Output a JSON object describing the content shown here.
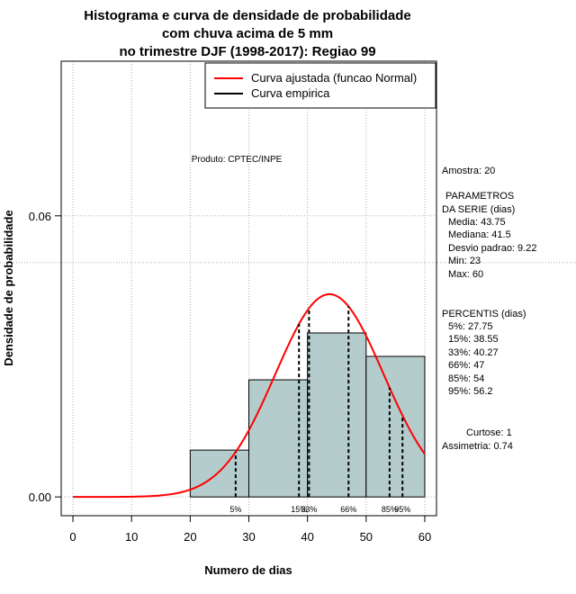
{
  "chart_data": {
    "type": "histogram",
    "title_lines": [
      "Histograma e curva de densidade de probabilidade",
      "com chuva acima de 5 mm",
      "no trimestre DJF (1998-2017): Regiao 99"
    ],
    "xlabel": "Numero de dias",
    "ylabel": "Densidade de probabilidade",
    "xlim": [
      -2,
      62
    ],
    "ylim": [
      -0.004,
      0.093
    ],
    "x_ticks": [
      0,
      10,
      20,
      30,
      40,
      50,
      60
    ],
    "y_ticks": [
      0.0,
      0.06
    ],
    "y_tick_labels": [
      "0.00",
      "0.06"
    ],
    "grid": true,
    "bins": [
      {
        "start": 20,
        "end": 30,
        "density": 0.01
      },
      {
        "start": 30,
        "end": 40,
        "density": 0.025
      },
      {
        "start": 40,
        "end": 50,
        "density": 0.035
      },
      {
        "start": 50,
        "end": 60,
        "density": 0.03
      }
    ],
    "normal_fit": {
      "mean": 43.75,
      "sd": 9.22,
      "x_from": 0,
      "x_to": 60
    },
    "reference_density": 0.05,
    "percentile_lines": [
      {
        "label": "5%",
        "x": 27.75
      },
      {
        "label": "15%",
        "x": 38.55
      },
      {
        "label": "33%",
        "x": 40.27
      },
      {
        "label": "66%",
        "x": 47
      },
      {
        "label": "85%",
        "x": 54
      },
      {
        "label": "95%",
        "x": 56.2
      }
    ],
    "legend": {
      "placement": "top-right",
      "entries": [
        {
          "label": "Curva ajustada (funcao Normal)",
          "color": "#ff0000"
        },
        {
          "label": "Curva empirica",
          "color": "#000000"
        }
      ]
    },
    "annotation": "Produto: CPTEC/INPE",
    "colors": {
      "bar_fill": "#b4cccc",
      "bar_stroke": "#000000",
      "curve": "#ff0000",
      "grid": "#b0b0b0"
    }
  },
  "stats_panel": {
    "amostra": "Amostra: 20",
    "param_header_1": "PARAMETROS",
    "param_header_2": "DA SERIE (dias)",
    "params": [
      "Media: 43.75",
      "Mediana: 41.5",
      "Desvio padrao: 9.22",
      "Min: 23",
      "Max: 60"
    ],
    "percentis_header": "PERCENTIS (dias)",
    "percentis": [
      "5%: 27.75",
      "15%: 38.55",
      "33%: 40.27",
      "66%: 47",
      "85%: 54",
      "95%: 56.2"
    ],
    "curtose": "Curtose: 1",
    "assimetria": "Assimetria: 0.74"
  }
}
